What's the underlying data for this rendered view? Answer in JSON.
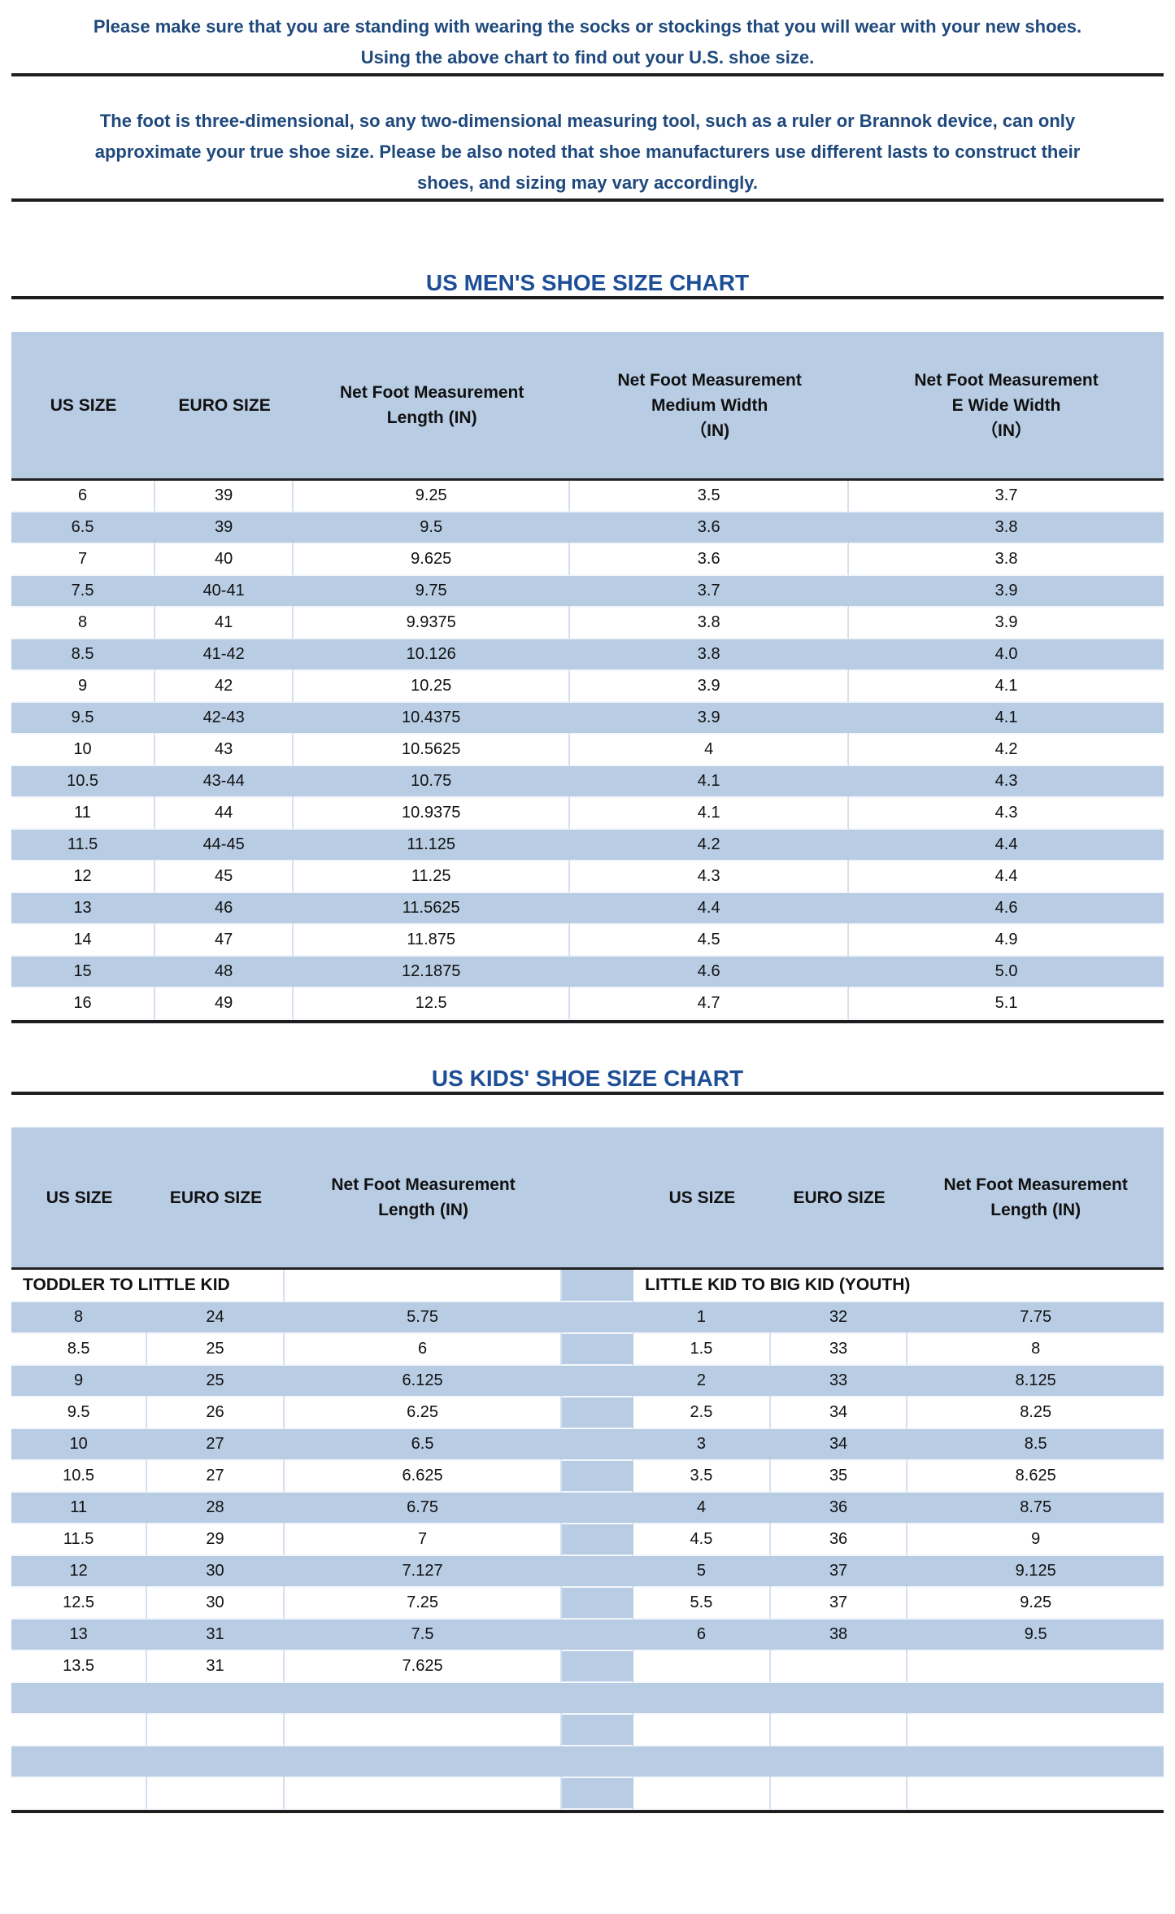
{
  "colors": {
    "table_blue": "#b8cce4",
    "paragraph_text": "#1f497d",
    "title_text": "#1e4f96",
    "rule_black": "#1e1e1e"
  },
  "intro": {
    "para1_lines": [
      "Please make sure that you are standing with wearing the socks or stockings that you will wear with your new shoes.",
      "Using the above chart to find out your U.S. shoe size."
    ],
    "para2_lines": [
      "The foot is three-dimensional, so any two-dimensional measuring tool, such as a ruler or Brannok device, can only",
      "approximate your true shoe size. Please be also noted that shoe manufacturers use different lasts to construct their",
      "shoes, and sizing may vary accordingly."
    ]
  },
  "mens_chart": {
    "title": "US MEN'S SHOE SIZE CHART",
    "headers": [
      {
        "line1": "US SIZE"
      },
      {
        "line1": "EURO SIZE"
      },
      {
        "line1": "Net Foot Measurement",
        "line2": "Length (IN)"
      },
      {
        "line1": "Net Foot Measurement",
        "line2": "Medium Width",
        "line3": "（IN)"
      },
      {
        "line1": "Net Foot Measurement",
        "line2": "E Wide Width",
        "line3": "（IN）"
      }
    ],
    "rows": [
      [
        "6",
        "39",
        "9.25",
        "3.5",
        "3.7"
      ],
      [
        "6.5",
        "39",
        "9.5",
        "3.6",
        "3.8"
      ],
      [
        "7",
        "40",
        "9.625",
        "3.6",
        "3.8"
      ],
      [
        "7.5",
        "40-41",
        "9.75",
        "3.7",
        "3.9"
      ],
      [
        "8",
        "41",
        "9.9375",
        "3.8",
        "3.9"
      ],
      [
        "8.5",
        "41-42",
        "10.126",
        "3.8",
        "4.0"
      ],
      [
        "9",
        "42",
        "10.25",
        "3.9",
        "4.1"
      ],
      [
        "9.5",
        "42-43",
        "10.4375",
        "3.9",
        "4.1"
      ],
      [
        "10",
        "43",
        "10.5625",
        "4",
        "4.2"
      ],
      [
        "10.5",
        "43-44",
        "10.75",
        "4.1",
        "4.3"
      ],
      [
        "11",
        "44",
        "10.9375",
        "4.1",
        "4.3"
      ],
      [
        "11.5",
        "44-45",
        "11.125",
        "4.2",
        "4.4"
      ],
      [
        "12",
        "45",
        "11.25",
        "4.3",
        "4.4"
      ],
      [
        "13",
        "46",
        "11.5625",
        "4.4",
        "4.6"
      ],
      [
        "14",
        "47",
        "11.875",
        "4.5",
        "4.9"
      ],
      [
        "15",
        "48",
        "12.1875",
        "4.6",
        "5.0"
      ],
      [
        "16",
        "49",
        "12.5",
        "4.7",
        "5.1"
      ]
    ]
  },
  "kids_chart": {
    "title": "US KIDS' SHOE SIZE CHART",
    "headers": [
      {
        "line1": "US SIZE"
      },
      {
        "line1": "EURO SIZE"
      },
      {
        "line1": "Net Foot Measurement",
        "line2": "Length (IN)"
      },
      {
        "line1": "US SIZE"
      },
      {
        "line1": "EURO SIZE"
      },
      {
        "line1": "Net Foot Measurement",
        "line2": "Length (IN)"
      }
    ],
    "left_section_label": "TODDLER TO LITTLE KID",
    "right_section_label": "LITTLE KID TO BIG KID (YOUTH)",
    "left_rows": [
      [
        "8",
        "24",
        "5.75"
      ],
      [
        "8.5",
        "25",
        "6"
      ],
      [
        "9",
        "25",
        "6.125"
      ],
      [
        "9.5",
        "26",
        "6.25"
      ],
      [
        "10",
        "27",
        "6.5"
      ],
      [
        "10.5",
        "27",
        "6.625"
      ],
      [
        "11",
        "28",
        "6.75"
      ],
      [
        "11.5",
        "29",
        "7"
      ],
      [
        "12",
        "30",
        "7.127"
      ],
      [
        "12.5",
        "30",
        "7.25"
      ],
      [
        "13",
        "31",
        "7.5"
      ],
      [
        "13.5",
        "31",
        "7.625"
      ]
    ],
    "right_rows": [
      [
        "1",
        "32",
        "7.75"
      ],
      [
        "1.5",
        "33",
        "8"
      ],
      [
        "2",
        "33",
        "8.125"
      ],
      [
        "2.5",
        "34",
        "8.25"
      ],
      [
        "3",
        "34",
        "8.5"
      ],
      [
        "3.5",
        "35",
        "8.625"
      ],
      [
        "4",
        "36",
        "8.75"
      ],
      [
        "4.5",
        "36",
        "9"
      ],
      [
        "5",
        "37",
        "9.125"
      ],
      [
        "5.5",
        "37",
        "9.25"
      ],
      [
        "6",
        "38",
        "9.5"
      ],
      [
        "",
        "",
        ""
      ]
    ],
    "trailing_empty_rows": 4
  }
}
